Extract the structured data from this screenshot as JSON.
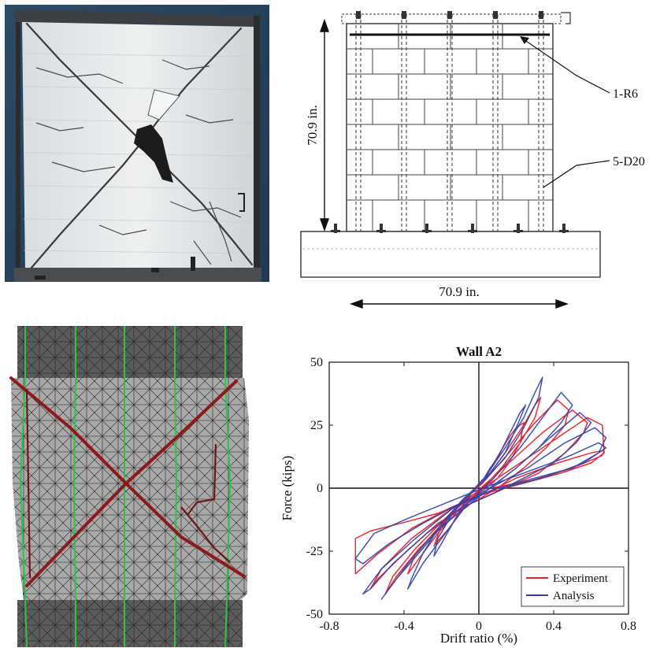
{
  "drawing": {
    "height_label": "70.9 in.",
    "width_label": "70.9 in.",
    "callout_top": "1-R6",
    "callout_bottom": "5-D20"
  },
  "chart_data": {
    "type": "line",
    "title": "Wall A2",
    "xlabel": "Drift ratio (%)",
    "ylabel": "Force (kips)",
    "xlim": [
      -0.8,
      0.8
    ],
    "ylim": [
      -50,
      50
    ],
    "xticks": [
      "-0.8",
      "-0.4",
      "0",
      "0.4",
      "0.8"
    ],
    "yticks": [
      "50",
      "25",
      "0",
      "-25",
      "-50"
    ],
    "legend_position": "bottom-right",
    "series": [
      {
        "name": "Experiment",
        "color": "#e8202a",
        "x": [
          0.02,
          0.05,
          0.08,
          0.12,
          0.16,
          0.2,
          0.24,
          0.22,
          0.16,
          0.1,
          0.04,
          -0.04,
          -0.1,
          -0.16,
          -0.22,
          -0.24,
          -0.2,
          -0.12,
          -0.04,
          0.04,
          0.14,
          0.24,
          0.3,
          0.33,
          0.3,
          0.22,
          0.12,
          0.02,
          -0.1,
          -0.22,
          -0.32,
          -0.38,
          -0.34,
          -0.22,
          -0.1,
          0.02,
          0.16,
          0.3,
          0.42,
          0.48,
          0.46,
          0.36,
          0.24,
          0.1,
          -0.04,
          -0.18,
          -0.32,
          -0.44,
          -0.5,
          -0.46,
          -0.34,
          -0.18,
          -0.02,
          0.16,
          0.34,
          0.5,
          0.58,
          0.56,
          0.46,
          0.32,
          0.14,
          -0.04,
          -0.22,
          -0.4,
          -0.54,
          -0.58,
          -0.52,
          -0.36,
          -0.18,
          0.02,
          0.22,
          0.42,
          0.58,
          0.66,
          0.67,
          0.6,
          0.44,
          0.24,
          0.04,
          -0.16,
          -0.36,
          -0.54,
          -0.66,
          -0.66,
          -0.58,
          -0.42,
          -0.22,
          -0.02,
          0.2,
          0.42,
          0.6,
          0.67,
          0.66,
          0.5,
          0.28,
          0.06
        ],
        "y": [
          2,
          6,
          10,
          15,
          20,
          24,
          26,
          18,
          10,
          4,
          0,
          -4,
          -10,
          -16,
          -21,
          -23,
          -15,
          -8,
          -2,
          4,
          14,
          25,
          33,
          36,
          28,
          18,
          8,
          0,
          -8,
          -18,
          -28,
          -34,
          -26,
          -16,
          -6,
          2,
          14,
          26,
          35,
          31,
          25,
          16,
          8,
          0,
          -6,
          -14,
          -24,
          -35,
          -42,
          -35,
          -24,
          -12,
          -2,
          10,
          22,
          31,
          26,
          22,
          14,
          6,
          0,
          -6,
          -14,
          -26,
          -36,
          -40,
          -32,
          -20,
          -10,
          0,
          10,
          20,
          28,
          25,
          14,
          10,
          6,
          2,
          -2,
          -8,
          -16,
          -26,
          -34,
          -20,
          -17,
          -14,
          -10,
          -4,
          4,
          10,
          14,
          15,
          13,
          8,
          3,
          0
        ]
      },
      {
        "name": "Analysis",
        "color": "#2e3fae",
        "x": [
          0.02,
          0.06,
          0.1,
          0.14,
          0.18,
          0.22,
          0.25,
          0.2,
          0.14,
          0.06,
          -0.02,
          -0.08,
          -0.14,
          -0.2,
          -0.24,
          -0.22,
          -0.14,
          -0.06,
          0.04,
          0.14,
          0.24,
          0.3,
          0.34,
          0.32,
          0.24,
          0.14,
          0.04,
          -0.08,
          -0.2,
          -0.3,
          -0.36,
          -0.38,
          -0.3,
          -0.18,
          -0.06,
          0.08,
          0.22,
          0.34,
          0.44,
          0.5,
          0.44,
          0.32,
          0.2,
          0.06,
          -0.08,
          -0.24,
          -0.38,
          -0.48,
          -0.52,
          -0.44,
          -0.3,
          -0.14,
          0.02,
          0.2,
          0.38,
          0.54,
          0.6,
          0.52,
          0.4,
          0.24,
          0.08,
          -0.1,
          -0.28,
          -0.46,
          -0.58,
          -0.62,
          -0.52,
          -0.34,
          -0.14,
          0.06,
          0.26,
          0.46,
          0.62,
          0.68,
          0.64,
          0.5,
          0.3,
          0.1,
          -0.1,
          -0.3,
          -0.48,
          -0.62,
          -0.66,
          -0.56,
          -0.38,
          -0.18,
          0.02,
          0.24,
          0.46,
          0.64,
          0.68,
          0.56,
          0.34,
          0.12,
          0.0
        ],
        "y": [
          3,
          8,
          12,
          18,
          24,
          30,
          33,
          24,
          14,
          6,
          0,
          -6,
          -14,
          -22,
          -27,
          -20,
          -10,
          -3,
          5,
          16,
          28,
          38,
          44,
          36,
          24,
          12,
          4,
          -4,
          -14,
          -26,
          -36,
          -40,
          -30,
          -18,
          -6,
          4,
          16,
          28,
          38,
          33,
          26,
          16,
          8,
          0,
          -8,
          -18,
          -30,
          -40,
          -44,
          -36,
          -24,
          -10,
          -2,
          8,
          20,
          30,
          26,
          18,
          10,
          4,
          -2,
          -8,
          -18,
          -30,
          -40,
          -42,
          -32,
          -20,
          -8,
          0,
          8,
          18,
          24,
          20,
          14,
          8,
          4,
          0,
          -6,
          -14,
          -22,
          -30,
          -28,
          -18,
          -12,
          -6,
          0,
          6,
          12,
          18,
          16,
          10,
          4,
          0,
          0
        ]
      }
    ]
  }
}
